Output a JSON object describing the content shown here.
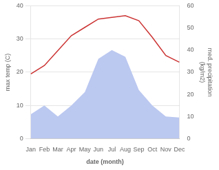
{
  "chart_data": {
    "type": "line",
    "xlabel": "date (month)",
    "ylabel": "max temp (C)",
    "y2label": "med. precipitation\n(kg/m2)",
    "categories": [
      "Jan",
      "Feb",
      "Mar",
      "Apr",
      "May",
      "Jun",
      "Jul",
      "Aug",
      "Sep",
      "Oct",
      "Nov",
      "Dec"
    ],
    "series": [
      {
        "type": "area",
        "axis": "y2",
        "color": "#bbc8f0",
        "values": [
          11,
          15,
          10,
          15,
          21,
          36,
          40,
          37,
          22,
          15,
          10,
          9.5
        ]
      },
      {
        "type": "line",
        "color": "#cc3333",
        "values": [
          19.5,
          22.0,
          26.5,
          31.0,
          33.5,
          36.0,
          36.5,
          37.0,
          35.5,
          30.5,
          25.0,
          23.0
        ]
      }
    ],
    "ylim": [
      0,
      40
    ],
    "yticks": [
      0,
      10,
      20,
      30,
      40
    ],
    "y2lim": [
      0,
      60
    ],
    "y2ticks": [
      0,
      10,
      20,
      30,
      40,
      50,
      60
    ],
    "grid": true
  }
}
